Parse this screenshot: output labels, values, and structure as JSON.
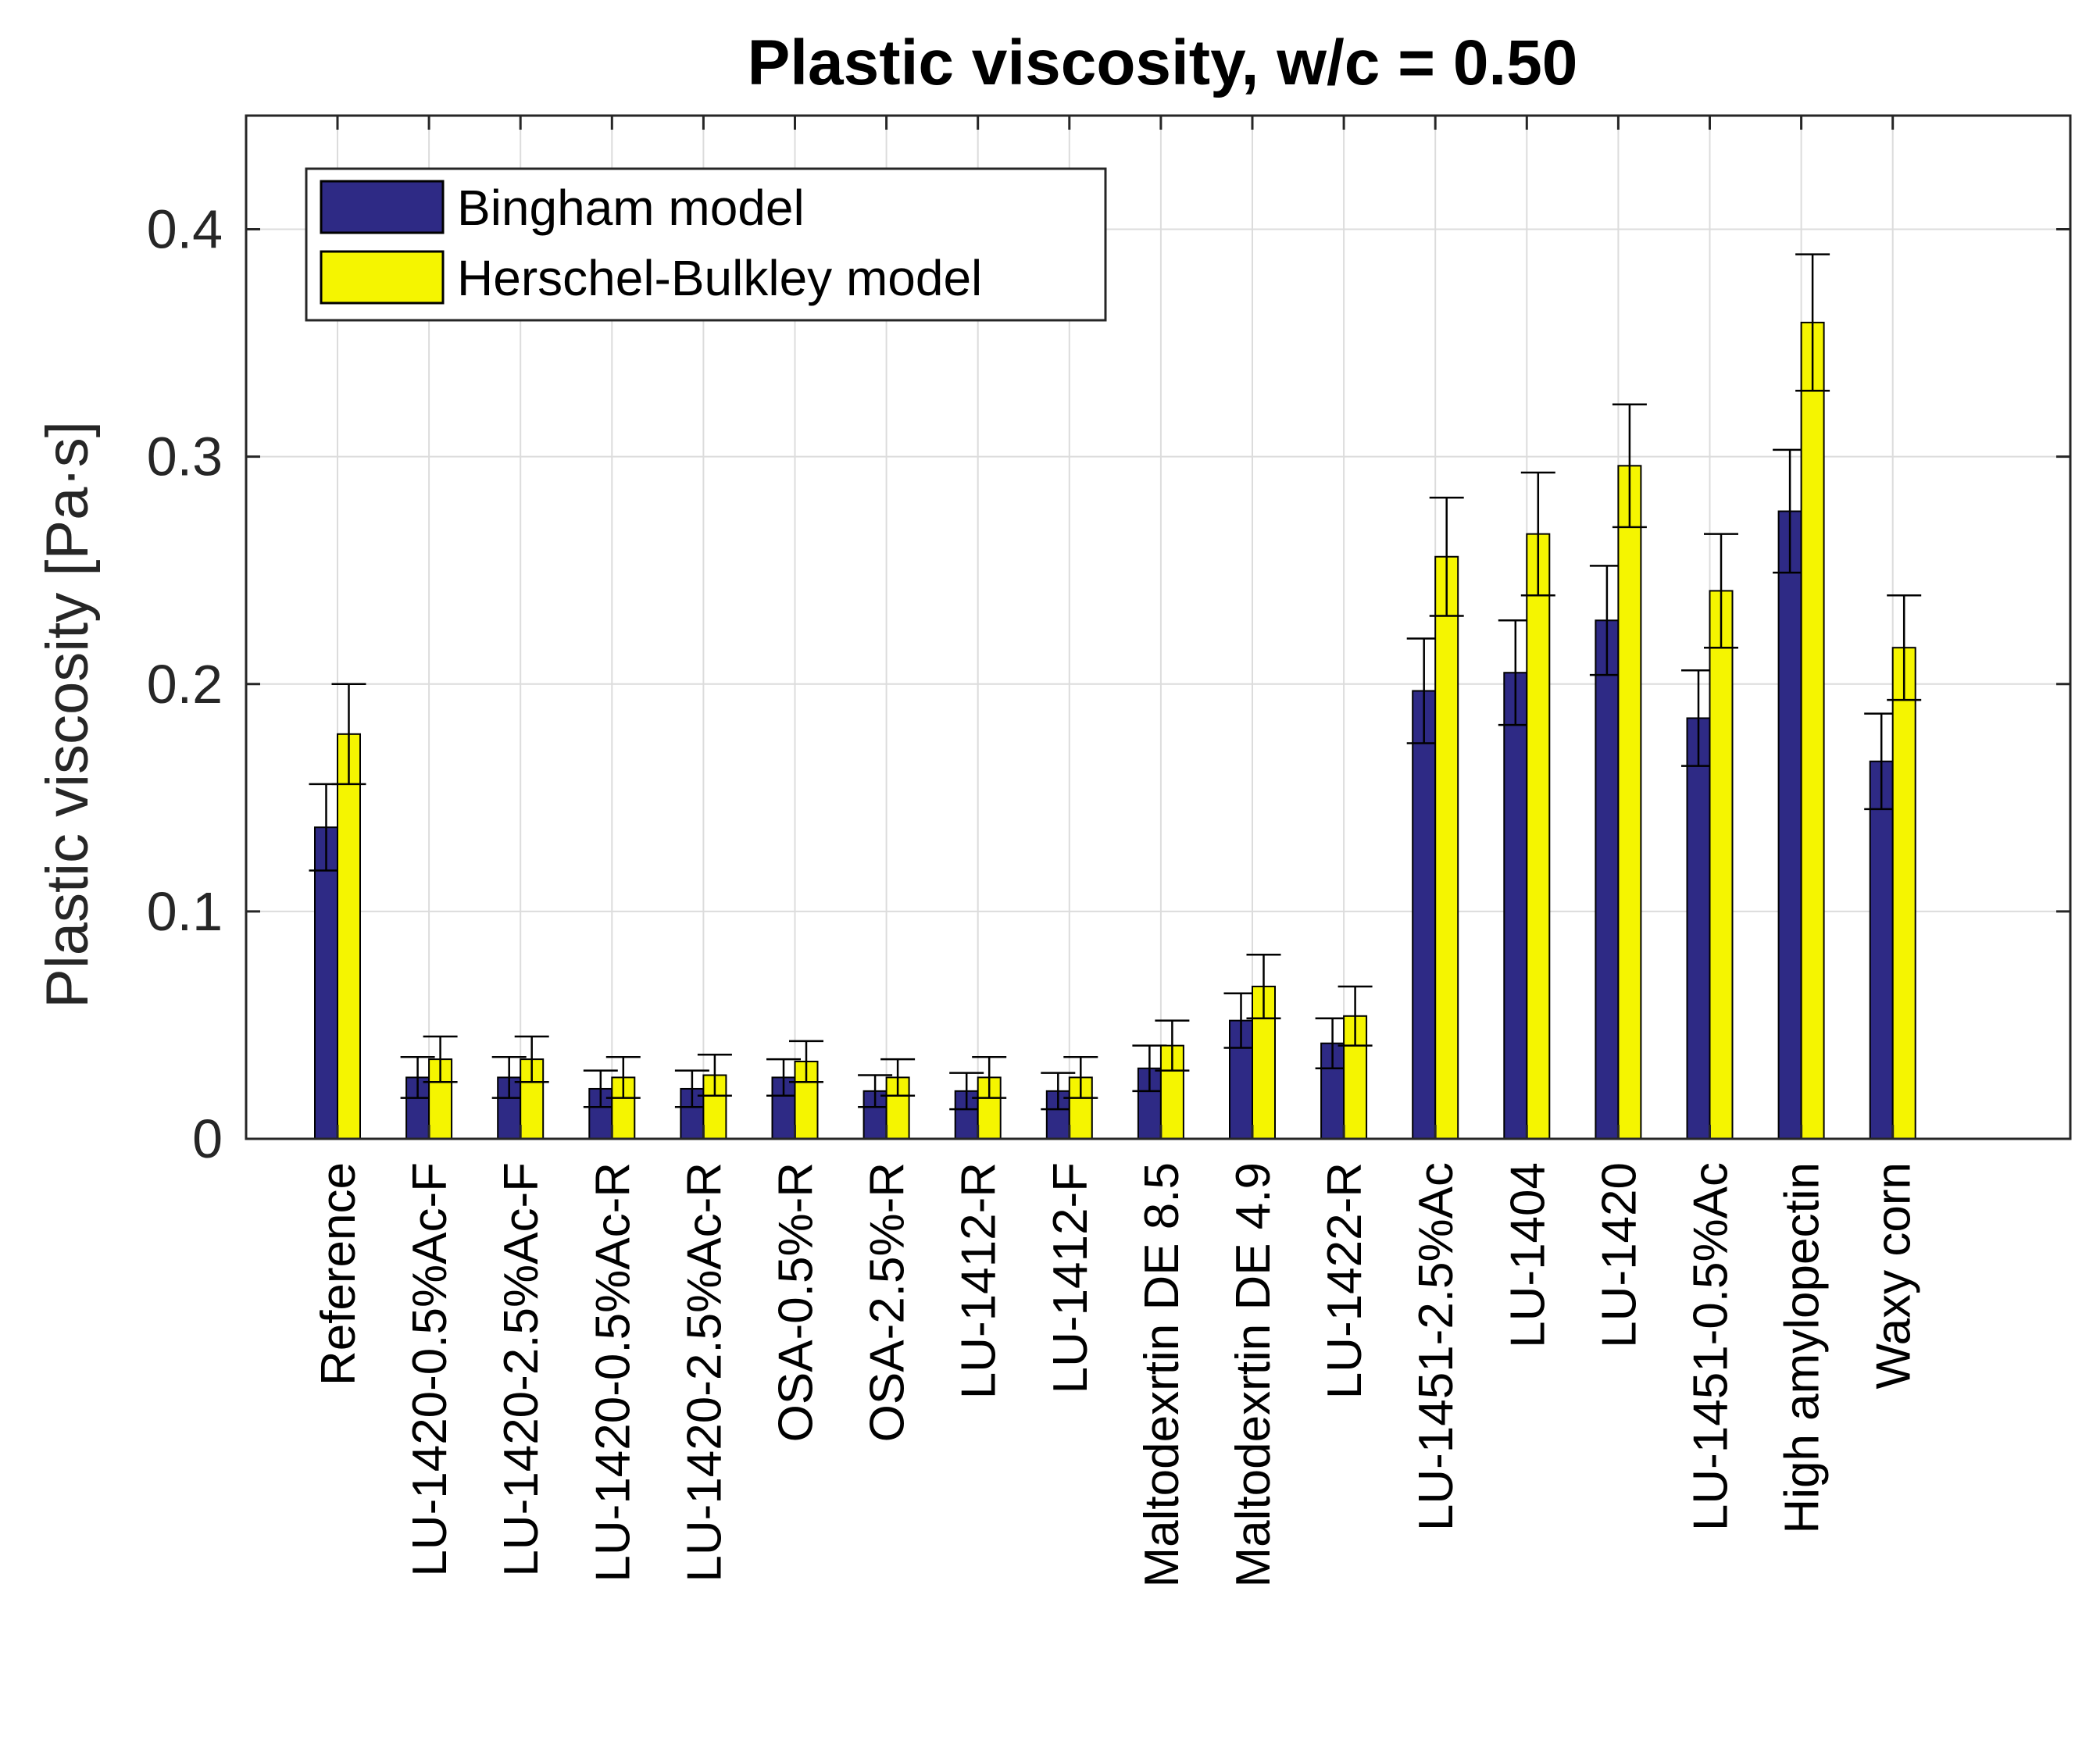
{
  "chart_data": {
    "type": "bar",
    "title": "Plastic viscosity, w/c = 0.50",
    "xlabel": "",
    "ylabel": "Plastic viscosity [Pa·s]",
    "ylim": [
      0,
      0.45
    ],
    "yticks": [
      0,
      0.1,
      0.2,
      0.3,
      0.4
    ],
    "ytick_labels": [
      "0",
      "0.1",
      "0.2",
      "0.3",
      "0.4"
    ],
    "grid": true,
    "legend_position": "top-left",
    "categories": [
      "Reference",
      "LU-1420-0.5%Ac-F",
      "LU-1420-2.5%Ac-F",
      "LU-1420-0.5%Ac-R",
      "LU-1420-2.5%Ac-R",
      "OSA-0.5%-R",
      "OSA-2.5%-R",
      "LU-1412-R",
      "LU-1412-F",
      "Maltodexrtin DE 8.5",
      "Maltodexrtin DE 4.9",
      "LU-1422-R",
      "LU-1451-2.5%Ac",
      "LU-1404",
      "LU-1420",
      "LU-1451-0.5%Ac",
      "High amylopectin",
      "Waxy corn"
    ],
    "series": [
      {
        "name": "Bingham model",
        "color": "#2e2a85",
        "values": [
          0.137,
          0.027,
          0.027,
          0.022,
          0.022,
          0.027,
          0.021,
          0.021,
          0.021,
          0.031,
          0.052,
          0.042,
          0.197,
          0.205,
          0.228,
          0.185,
          0.276,
          0.166
        ],
        "errors": [
          0.019,
          0.009,
          0.009,
          0.008,
          0.008,
          0.008,
          0.007,
          0.008,
          0.008,
          0.01,
          0.012,
          0.011,
          0.023,
          0.023,
          0.024,
          0.021,
          0.027,
          0.021
        ]
      },
      {
        "name": "Herschel-Bulkley model",
        "color": "#f5f500",
        "values": [
          0.178,
          0.035,
          0.035,
          0.027,
          0.028,
          0.034,
          0.027,
          0.027,
          0.027,
          0.041,
          0.067,
          0.054,
          0.256,
          0.266,
          0.296,
          0.241,
          0.359,
          0.216
        ],
        "errors": [
          0.022,
          0.01,
          0.01,
          0.009,
          0.009,
          0.009,
          0.008,
          0.009,
          0.009,
          0.011,
          0.014,
          0.013,
          0.026,
          0.027,
          0.027,
          0.025,
          0.03,
          0.023
        ]
      }
    ]
  }
}
